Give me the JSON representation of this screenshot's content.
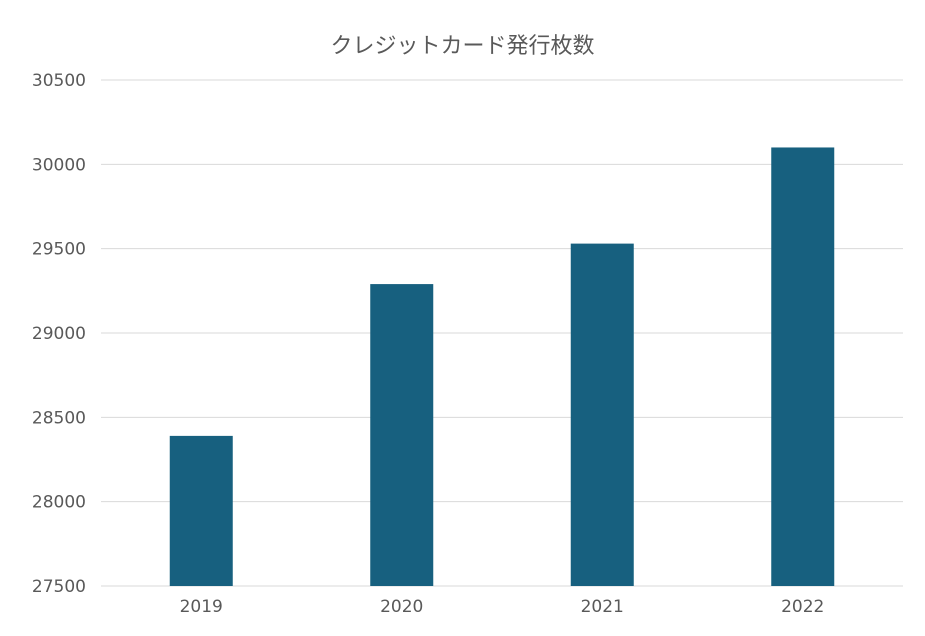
{
  "chart_data": {
    "type": "bar",
    "title": "クレジットカード発行枚数",
    "xlabel": "",
    "ylabel": "",
    "categories": [
      "2019",
      "2020",
      "2021",
      "2022"
    ],
    "values": [
      28390,
      29290,
      29530,
      30100
    ],
    "ylim": [
      27500,
      30500
    ],
    "yticks": [
      27500,
      28000,
      28500,
      29000,
      29500,
      30000,
      30500
    ],
    "grid": true,
    "legend": "none",
    "bar_color": "#17607f"
  }
}
